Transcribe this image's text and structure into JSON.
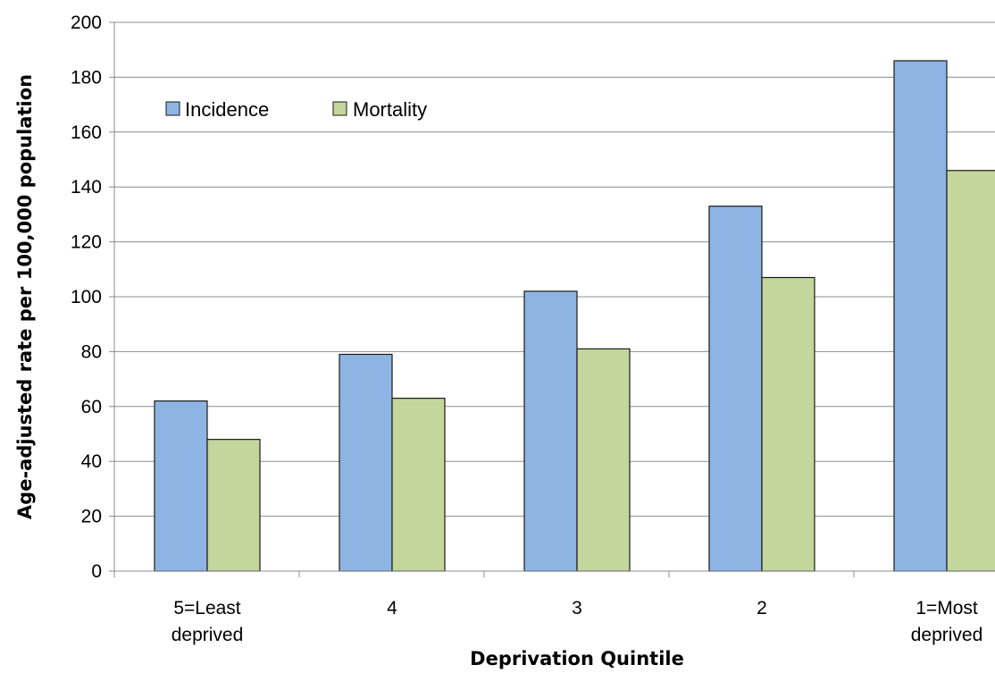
{
  "chart_data": {
    "type": "bar",
    "title": "",
    "xlabel": "Deprivation Quintile",
    "ylabel": "Age-adjusted rate per 100,000 population",
    "categories": [
      [
        "5=Least",
        "deprived"
      ],
      [
        "4"
      ],
      [
        "3"
      ],
      [
        "2"
      ],
      [
        "1=Most",
        "deprived"
      ]
    ],
    "series": [
      {
        "name": "Incidence",
        "values": [
          62,
          79,
          102,
          133,
          186
        ],
        "color": "#8EB4E3"
      },
      {
        "name": "Mortality",
        "values": [
          48,
          63,
          81,
          107,
          146
        ],
        "color": "#C3D69B"
      }
    ],
    "ylim": [
      0,
      200
    ],
    "yticks": [
      0,
      20,
      40,
      60,
      80,
      100,
      120,
      140,
      160,
      180,
      200
    ],
    "grid": true,
    "legend": "top-left"
  }
}
